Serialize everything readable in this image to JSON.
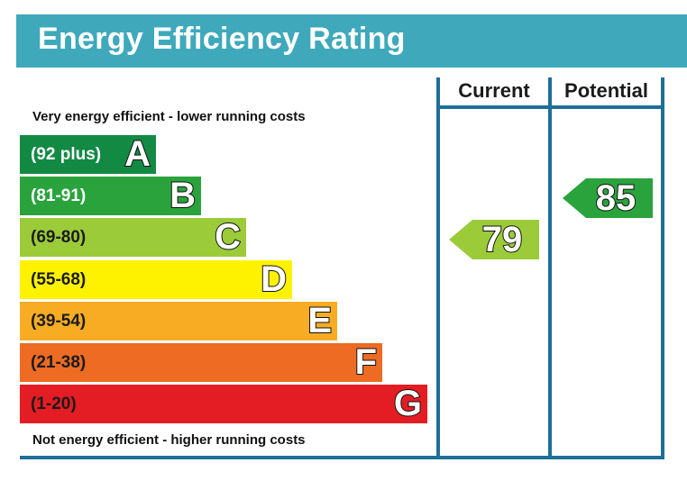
{
  "title": "Energy Efficiency Rating",
  "columns": {
    "current": "Current",
    "potential": "Potential"
  },
  "captions": {
    "top": "Very energy efficient - lower running costs",
    "bottom": "Not energy efficient - higher running costs"
  },
  "chart_data": {
    "type": "bar",
    "title": "Energy Efficiency Rating",
    "categories": [
      "A",
      "B",
      "C",
      "D",
      "E",
      "F",
      "G"
    ],
    "bands": [
      {
        "letter": "A",
        "range": "(92 plus)",
        "min": 92,
        "max": 100,
        "color": "#128a44",
        "text_color": "#ffffff"
      },
      {
        "letter": "B",
        "range": "(81-91)",
        "min": 81,
        "max": 91,
        "color": "#2aa33d",
        "text_color": "#ffffff"
      },
      {
        "letter": "C",
        "range": "(69-80)",
        "min": 69,
        "max": 80,
        "color": "#9ccb3a",
        "text_color": "#1b1b1b"
      },
      {
        "letter": "D",
        "range": "(55-68)",
        "min": 55,
        "max": 68,
        "color": "#fff200",
        "text_color": "#1b1b1b"
      },
      {
        "letter": "E",
        "range": "(39-54)",
        "min": 39,
        "max": 54,
        "color": "#f7ac24",
        "text_color": "#1b1b1b"
      },
      {
        "letter": "F",
        "range": "(21-38)",
        "min": 21,
        "max": 38,
        "color": "#ed6b23",
        "text_color": "#1b1b1b"
      },
      {
        "letter": "G",
        "range": "(1-20)",
        "min": 1,
        "max": 20,
        "color": "#e31d23",
        "text_color": "#1b1b1b"
      }
    ],
    "ratings": [
      {
        "name": "Current",
        "value": 79,
        "band": "C",
        "color": "#9ccb3a"
      },
      {
        "name": "Potential",
        "value": 85,
        "band": "B",
        "color": "#2aa33d"
      }
    ]
  }
}
